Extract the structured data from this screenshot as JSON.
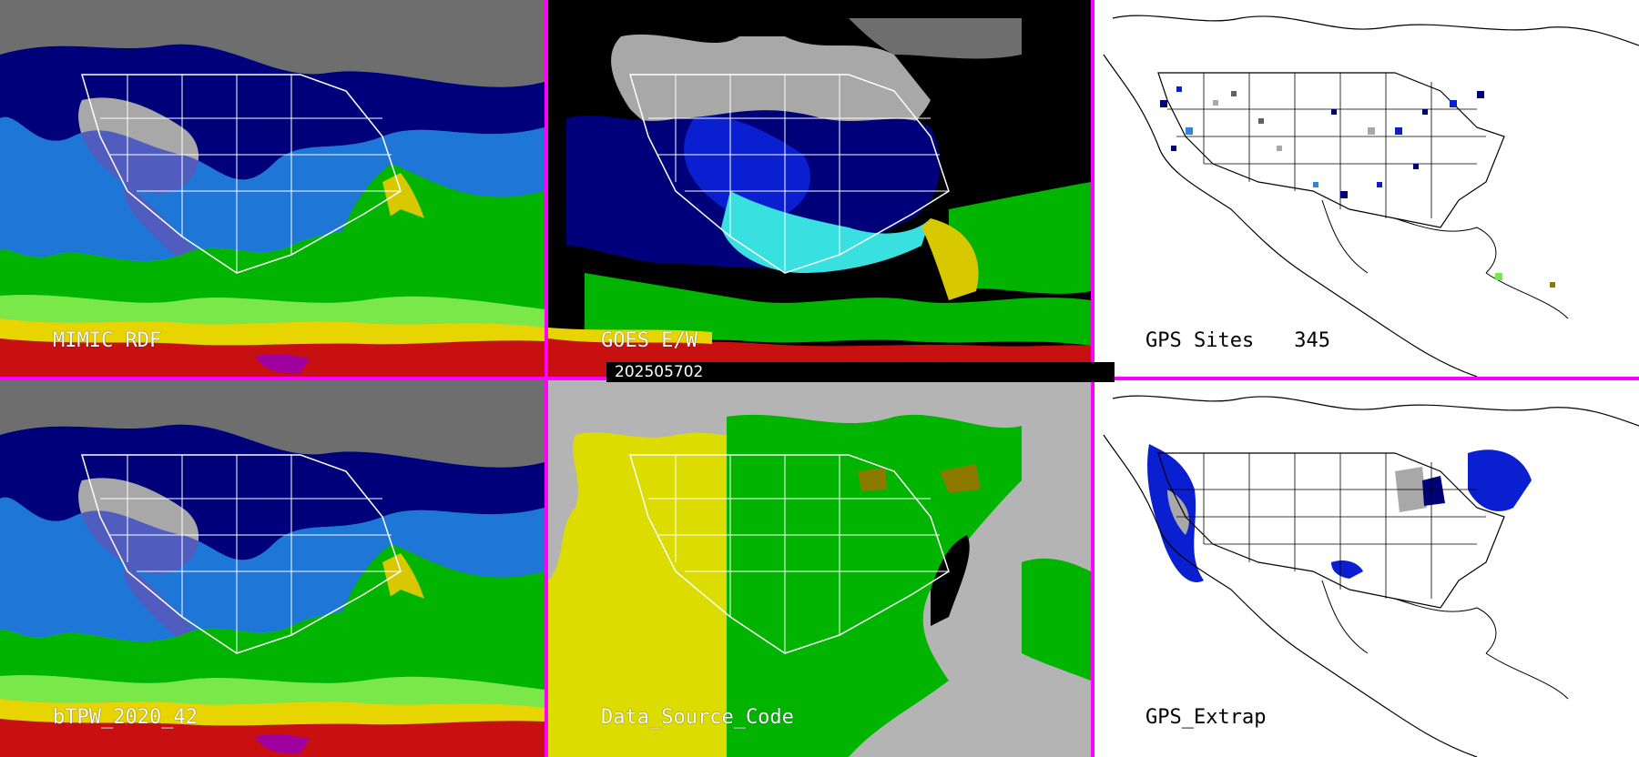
{
  "panels": [
    {
      "id": "mimic",
      "label": "MIMIC RDF",
      "style": "tpw"
    },
    {
      "id": "goes",
      "label": "GOES E/W",
      "style": "goes"
    },
    {
      "id": "gps_sites",
      "label": "GPS Sites",
      "count": "345",
      "style": "gps"
    },
    {
      "id": "btpw",
      "label": "bTPW_2020_42",
      "style": "tpw"
    },
    {
      "id": "source",
      "label": "Data_Source_Code",
      "style": "source"
    },
    {
      "id": "gps_extrap",
      "label": "GPS_Extrap",
      "style": "gps"
    }
  ],
  "date_label": "202505702",
  "colors": {
    "divider": "#ff00ff",
    "date_bar": "#000000",
    "tpw_palette": [
      "#6e6e6e",
      "#a8a8a8",
      "#00007a",
      "#0a1fd0",
      "#2e86d8",
      "#38e0e0",
      "#00b400",
      "#7be84a",
      "#d8c800",
      "#e8d400",
      "#c81010",
      "#a000a0"
    ],
    "source_palette": [
      "#b4b4b4",
      "#dcdc00",
      "#00b400",
      "#8c7a00",
      "#000000"
    ],
    "gps_palette": [
      "#00007a",
      "#0a1fd0",
      "#2e86d8",
      "#a8a8a8",
      "#606060",
      "#7be84a"
    ]
  }
}
